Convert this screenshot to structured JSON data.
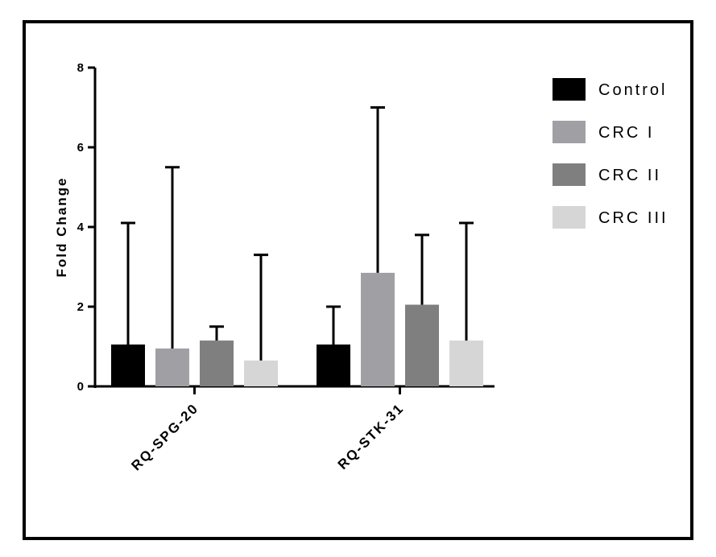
{
  "chart_data": {
    "type": "bar",
    "title": "",
    "xlabel": "",
    "ylabel": "Fold Change",
    "ylim": [
      0,
      8
    ],
    "yticks": [
      0,
      2,
      4,
      6,
      8
    ],
    "grid": false,
    "legend_position": "right",
    "categories": [
      "RQ-SPG-20",
      "RQ-STK-31"
    ],
    "series": [
      {
        "name": "Control",
        "color": "#000000",
        "values": [
          1.05,
          1.05
        ],
        "error_upper": [
          4.1,
          2.0
        ]
      },
      {
        "name": "CRC I",
        "color": "#a0a0a4",
        "values": [
          0.95,
          2.85
        ],
        "error_upper": [
          5.5,
          7.0
        ]
      },
      {
        "name": "CRC II",
        "color": "#7f7f7f",
        "values": [
          1.15,
          2.05
        ],
        "error_upper": [
          1.5,
          3.8
        ]
      },
      {
        "name": "CRC III",
        "color": "#d6d6d6",
        "values": [
          0.65,
          1.15
        ],
        "error_upper": [
          3.3,
          4.1
        ]
      }
    ]
  }
}
